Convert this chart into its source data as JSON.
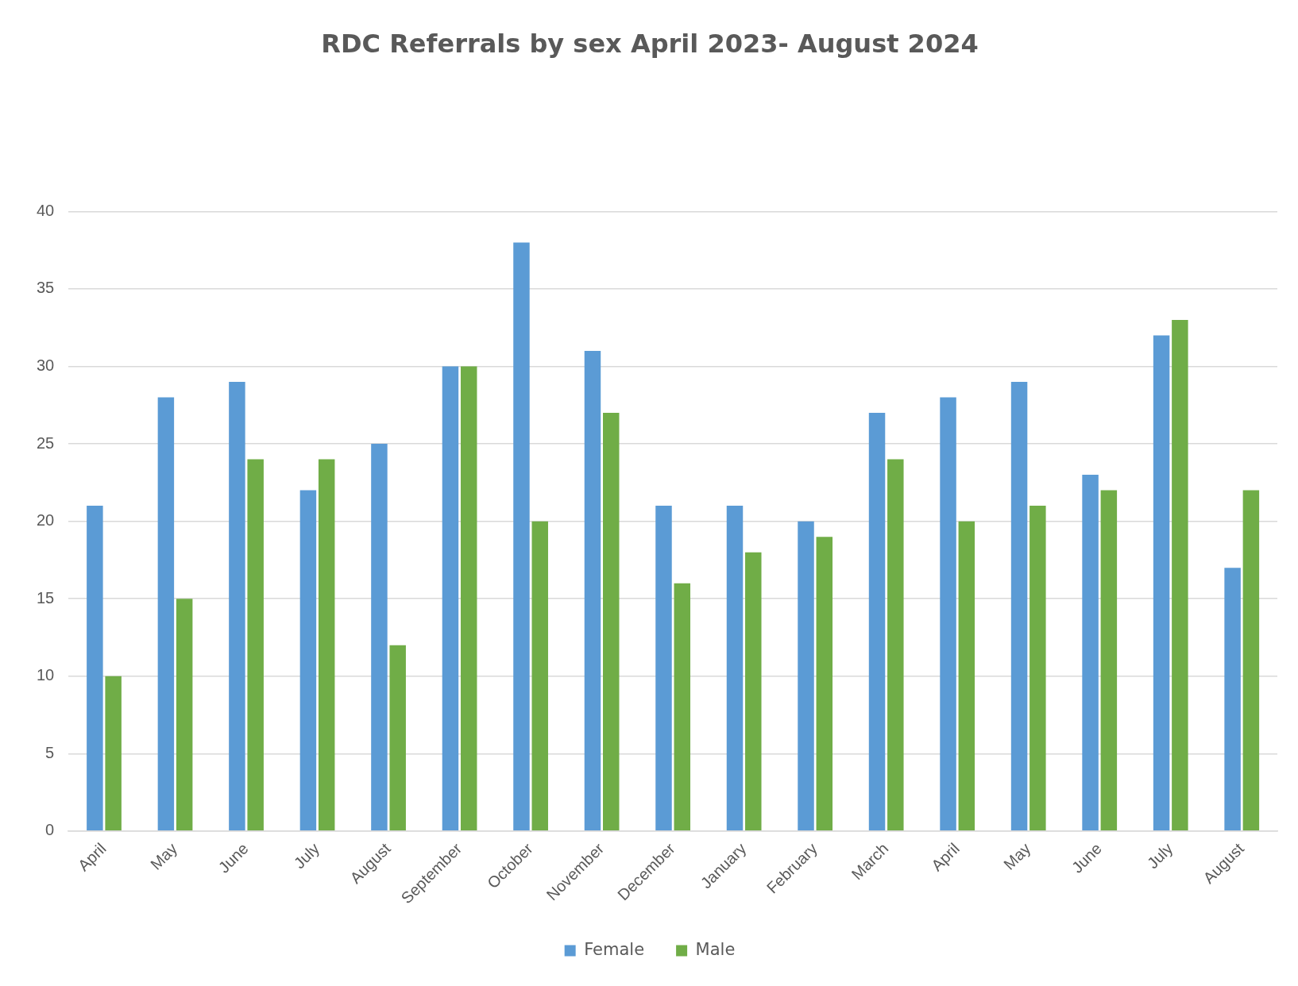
{
  "chart_data": {
    "type": "bar",
    "title": "RDC Referrals by sex April 2023- August 2024",
    "categories": [
      "April",
      "May",
      "June",
      "July",
      "August",
      "September",
      "October",
      "November",
      "December",
      "January",
      "February",
      "March",
      "April",
      "May",
      "June",
      "July",
      "August"
    ],
    "series": [
      {
        "name": "Female",
        "color": "#5b9bd5",
        "values": [
          21,
          28,
          29,
          22,
          25,
          30,
          38,
          31,
          21,
          21,
          20,
          27,
          28,
          29,
          23,
          32,
          17
        ]
      },
      {
        "name": "Male",
        "color": "#70ad47",
        "values": [
          10,
          15,
          24,
          24,
          12,
          30,
          20,
          27,
          16,
          18,
          19,
          24,
          20,
          21,
          22,
          33,
          22
        ]
      }
    ],
    "ylim": [
      0,
      40
    ],
    "yticks": [
      0,
      5,
      10,
      15,
      20,
      25,
      30,
      35,
      40
    ],
    "grid": "y",
    "legend": "bottom"
  }
}
